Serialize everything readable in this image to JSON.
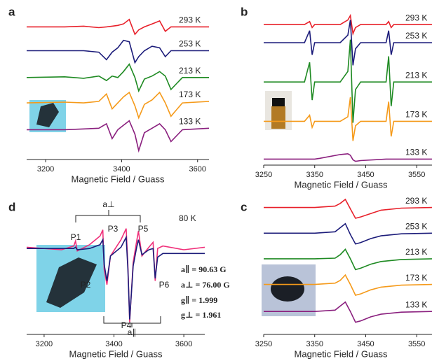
{
  "chart_data": [
    {
      "panel": "a",
      "type": "line",
      "x_label": "Magnetic Field / Guass",
      "x": [
        3150,
        3250,
        3300,
        3340,
        3360,
        3375,
        3390,
        3405,
        3420,
        3435,
        3445,
        3460,
        3480,
        3500,
        3515,
        3530,
        3560,
        3630
      ],
      "xlim": [
        3150,
        3630
      ],
      "xticks": [
        3200,
        3400,
        3600
      ],
      "ylim": [
        0,
        10
      ],
      "series": [
        {
          "name": "293 K",
          "color": "#e8202a",
          "values": [
            8.9,
            8.9,
            8.95,
            8.85,
            8.9,
            8.95,
            9.0,
            9.1,
            9.4,
            8.4,
            8.7,
            8.9,
            9.1,
            9.3,
            8.6,
            8.9,
            8.9,
            8.9
          ]
        },
        {
          "name": "253 K",
          "color": "#1c1c7a",
          "values": [
            7.3,
            7.3,
            7.3,
            7.2,
            6.7,
            7.2,
            7.5,
            8.0,
            7.9,
            6.5,
            6.9,
            7.3,
            7.6,
            7.5,
            6.9,
            7.3,
            7.3,
            7.3
          ]
        },
        {
          "name": "213 K",
          "color": "#1e8a22",
          "values": [
            5.5,
            5.55,
            5.45,
            5.6,
            5.3,
            5.6,
            5.5,
            5.9,
            6.4,
            5.5,
            4.6,
            5.4,
            5.6,
            5.9,
            5.6,
            4.7,
            5.5,
            5.5
          ]
        },
        {
          "name": "173 K",
          "color": "#f59a1a",
          "values": [
            3.8,
            3.85,
            3.8,
            3.9,
            4.4,
            3.4,
            3.8,
            4.2,
            4.5,
            3.6,
            2.8,
            3.7,
            4.0,
            4.5,
            3.8,
            2.9,
            3.8,
            3.9
          ]
        },
        {
          "name": "133 K",
          "color": "#8a1f7e",
          "values": [
            2.0,
            2.0,
            2.05,
            2.1,
            2.4,
            1.4,
            2.0,
            2.3,
            2.6,
            1.7,
            0.6,
            1.8,
            2.1,
            2.4,
            2.0,
            1.2,
            2.0,
            2.1
          ]
        }
      ]
    },
    {
      "panel": "b",
      "type": "line",
      "x_label": "Magnetic Field / Guass",
      "x": [
        3250,
        3330,
        3340,
        3345,
        3350,
        3360,
        3400,
        3415,
        3420,
        3425,
        3430,
        3440,
        3490,
        3495,
        3500,
        3505,
        3510,
        3580
      ],
      "xlim": [
        3250,
        3580
      ],
      "xticks": [
        3250,
        3350,
        3450,
        3550
      ],
      "ylim": [
        0,
        10
      ],
      "series": [
        {
          "name": "293 K",
          "color": "#e8202a",
          "values": [
            9.3,
            9.3,
            9.5,
            9.1,
            9.3,
            9.3,
            9.3,
            9.6,
            9.9,
            8.7,
            9.1,
            9.3,
            9.3,
            9.5,
            9.1,
            9.3,
            9.3,
            9.3
          ]
        },
        {
          "name": "253 K",
          "color": "#1c1c7a",
          "values": [
            8.1,
            8.1,
            8.9,
            7.3,
            8.1,
            8.1,
            8.1,
            8.6,
            9.6,
            6.6,
            7.7,
            8.1,
            8.1,
            8.9,
            7.3,
            8.1,
            8.1,
            8.1
          ]
        },
        {
          "name": "213 K",
          "color": "#1e8a22",
          "values": [
            5.5,
            5.5,
            6.8,
            4.3,
            5.5,
            5.5,
            5.5,
            6.2,
            8.3,
            2.8,
            5.0,
            5.5,
            5.5,
            7.2,
            3.9,
            5.5,
            5.5,
            5.5
          ]
        },
        {
          "name": "173 K",
          "color": "#f59a1a",
          "values": [
            2.9,
            2.9,
            3.3,
            2.5,
            2.9,
            2.9,
            2.9,
            3.2,
            4.5,
            1.6,
            2.6,
            2.9,
            2.9,
            4.2,
            1.9,
            2.9,
            2.9,
            2.9
          ]
        },
        {
          "name": "133 K",
          "color": "#8a1f7e",
          "values": [
            0.4,
            0.4,
            0.4,
            0.4,
            0.4,
            0.45,
            0.7,
            0.75,
            0.65,
            0.35,
            0.25,
            0.3,
            0.4,
            0.4,
            0.4,
            0.4,
            0.4,
            0.4
          ]
        }
      ]
    },
    {
      "panel": "d",
      "type": "line",
      "x_label": "Magnetic Field / Guass",
      "x": [
        3150,
        3250,
        3285,
        3290,
        3295,
        3330,
        3360,
        3368,
        3372,
        3380,
        3390,
        3420,
        3435,
        3440,
        3445,
        3455,
        3465,
        3470,
        3480,
        3500,
        3512,
        3518,
        3525,
        3540,
        3600,
        3660
      ],
      "xlim": [
        3150,
        3660
      ],
      "xticks": [
        3200,
        3400,
        3600
      ],
      "ylim": [
        0,
        10
      ],
      "series": [
        {
          "color": "#f0307a",
          "values": [
            7.0,
            6.8,
            7.1,
            7.5,
            6.7,
            7.2,
            7.9,
            8.4,
            5.2,
            4.0,
            6.3,
            7.6,
            8.5,
            5.5,
            1.0,
            5.8,
            7.5,
            8.3,
            6.3,
            7.0,
            7.4,
            4.3,
            6.9,
            7.1,
            6.8,
            7.0
          ]
        },
        {
          "color": "#1c1c7a",
          "values": [
            6.9,
            6.9,
            6.9,
            7.0,
            6.8,
            6.9,
            7.2,
            7.6,
            5.6,
            4.3,
            6.3,
            7.0,
            7.8,
            5.2,
            1.2,
            5.5,
            7.0,
            7.6,
            6.4,
            6.8,
            6.9,
            4.5,
            6.2,
            6.5,
            6.5,
            6.5
          ]
        }
      ],
      "annotations": [
        "80 K",
        "a⊥",
        "a∥",
        "P1",
        "P2",
        "P3",
        "P4",
        "P5",
        "P6",
        "a∥ = 90.63 G",
        "a⊥ = 76.00 G",
        "g∥ = 1.999",
        "g⊥ = 1.961"
      ]
    },
    {
      "panel": "c",
      "type": "line",
      "x_label": "Magnetic Field / Guass",
      "x": [
        3250,
        3350,
        3390,
        3400,
        3410,
        3420,
        3430,
        3440,
        3460,
        3480,
        3520,
        3580
      ],
      "xlim": [
        3250,
        3580
      ],
      "xticks": [
        3250,
        3350,
        3450,
        3550
      ],
      "ylim": [
        0,
        10
      ],
      "series": [
        {
          "name": "293 K",
          "color": "#e8202a",
          "values": [
            9.4,
            9.4,
            9.5,
            9.7,
            10.0,
            9.3,
            8.6,
            8.7,
            8.95,
            9.2,
            9.35,
            9.4
          ]
        },
        {
          "name": "253 K",
          "color": "#1c1c7a",
          "values": [
            7.5,
            7.5,
            7.6,
            7.9,
            8.2,
            7.4,
            6.7,
            6.8,
            7.1,
            7.3,
            7.45,
            7.5
          ]
        },
        {
          "name": "213 K",
          "color": "#1e8a22",
          "values": [
            5.6,
            5.6,
            5.65,
            5.9,
            6.3,
            5.6,
            4.8,
            4.9,
            5.2,
            5.4,
            5.55,
            5.6
          ]
        },
        {
          "name": "173 K",
          "color": "#f59a1a",
          "values": [
            3.7,
            3.7,
            3.8,
            4.0,
            4.4,
            3.7,
            2.9,
            3.0,
            3.3,
            3.5,
            3.65,
            3.7
          ]
        },
        {
          "name": "133 K",
          "color": "#8a1f7e",
          "values": [
            1.7,
            1.7,
            1.8,
            2.1,
            2.4,
            1.7,
            0.9,
            1.0,
            1.3,
            1.5,
            1.65,
            1.7
          ]
        }
      ]
    }
  ]
}
